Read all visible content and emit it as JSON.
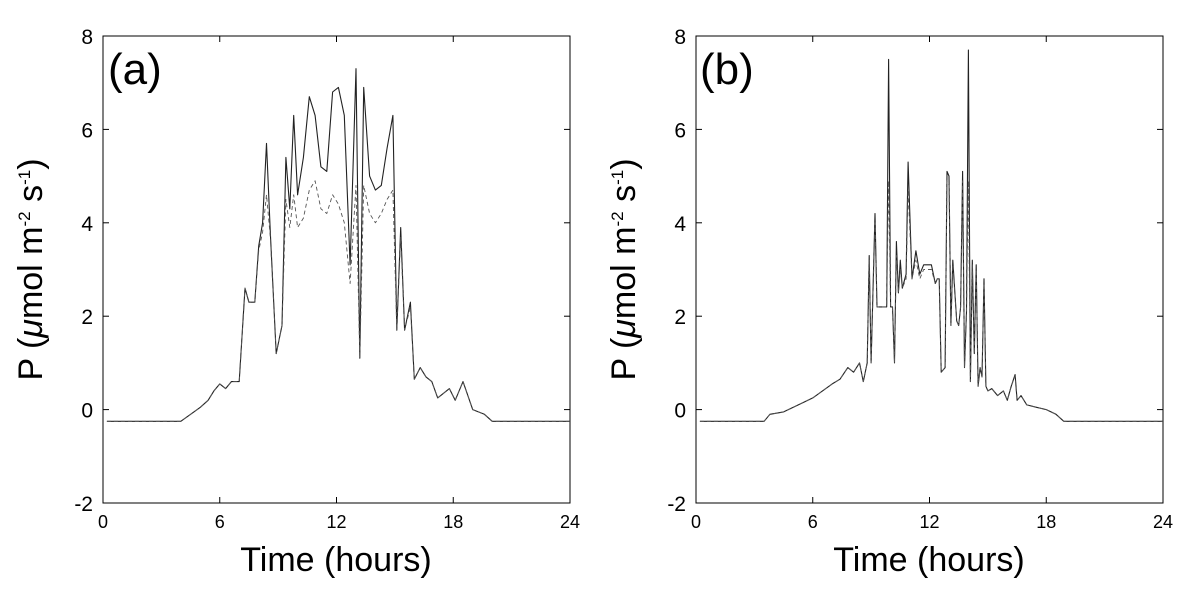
{
  "chart_data": [
    {
      "type": "line",
      "panel_label": "(a)",
      "xlabel": "Time (hours)",
      "ylabel": {
        "prefix": "P (",
        "mu": "μ",
        "mid1": "mol m",
        "sup1": "-2",
        "mid2": " s",
        "sup2": "-1",
        "suffix": ")"
      },
      "xlim": [
        0,
        24
      ],
      "ylim": [
        -2,
        8
      ],
      "xticks": [
        0,
        6,
        12,
        18,
        24
      ],
      "yticks": [
        -2,
        0,
        2,
        4,
        6,
        8
      ],
      "series": [
        {
          "name": "solid",
          "style": "solid",
          "color": "#222222",
          "x": [
            0.2,
            4.0,
            4.5,
            5.0,
            5.4,
            5.7,
            6.0,
            6.3,
            6.6,
            7.0,
            7.3,
            7.5,
            7.8,
            8.0,
            8.2,
            8.4,
            8.6,
            8.9,
            9.2,
            9.4,
            9.6,
            9.8,
            10.0,
            10.3,
            10.6,
            10.9,
            11.2,
            11.5,
            11.8,
            12.1,
            12.4,
            12.7,
            13.0,
            13.2,
            13.4,
            13.7,
            14.0,
            14.3,
            14.6,
            14.9,
            15.1,
            15.3,
            15.5,
            15.8,
            16.0,
            16.3,
            16.6,
            16.9,
            17.2,
            17.5,
            17.8,
            18.1,
            18.5,
            19.0,
            19.6,
            20.0,
            24.0
          ],
          "y": [
            -0.25,
            -0.25,
            -0.1,
            0.05,
            0.2,
            0.4,
            0.55,
            0.45,
            0.6,
            0.6,
            2.6,
            2.3,
            2.3,
            3.5,
            4.0,
            5.7,
            3.8,
            1.2,
            1.8,
            5.4,
            4.3,
            6.3,
            4.6,
            5.4,
            6.7,
            6.3,
            5.2,
            5.1,
            6.8,
            6.9,
            6.3,
            3.1,
            7.3,
            1.1,
            6.9,
            5.0,
            4.7,
            4.8,
            5.6,
            6.3,
            1.7,
            3.9,
            1.7,
            2.3,
            0.65,
            0.9,
            0.7,
            0.6,
            0.25,
            0.35,
            0.45,
            0.2,
            0.6,
            0.0,
            -0.1,
            -0.25,
            -0.25
          ]
        },
        {
          "name": "dashed",
          "style": "dashed",
          "color": "#555555",
          "x": [
            0.2,
            4.0,
            4.5,
            5.0,
            5.4,
            5.7,
            6.0,
            6.3,
            6.6,
            7.0,
            7.3,
            7.5,
            7.8,
            8.0,
            8.2,
            8.4,
            8.6,
            8.9,
            9.2,
            9.4,
            9.6,
            9.8,
            10.0,
            10.3,
            10.6,
            10.9,
            11.2,
            11.5,
            11.8,
            12.1,
            12.4,
            12.7,
            13.0,
            13.2,
            13.4,
            13.7,
            14.0,
            14.3,
            14.6,
            14.9,
            15.1,
            15.3,
            15.5,
            15.8,
            16.0,
            16.3,
            16.6,
            16.9,
            17.2,
            17.5,
            17.8,
            18.1,
            18.5,
            19.0,
            19.6,
            20.0,
            24.0
          ],
          "y": [
            -0.25,
            -0.25,
            -0.1,
            0.05,
            0.2,
            0.4,
            0.55,
            0.45,
            0.6,
            0.6,
            2.6,
            2.3,
            2.3,
            3.4,
            3.8,
            4.6,
            3.7,
            1.2,
            1.8,
            4.5,
            3.9,
            4.6,
            3.9,
            4.1,
            4.7,
            4.9,
            4.3,
            4.2,
            4.6,
            4.4,
            4.0,
            2.7,
            4.8,
            1.1,
            4.8,
            4.2,
            4.0,
            4.2,
            4.5,
            4.7,
            1.7,
            3.7,
            1.7,
            2.2,
            0.65,
            0.9,
            0.7,
            0.6,
            0.25,
            0.35,
            0.45,
            0.2,
            0.6,
            0.0,
            -0.1,
            -0.25,
            -0.25
          ]
        }
      ]
    },
    {
      "type": "line",
      "panel_label": "(b)",
      "xlabel": "Time (hours)",
      "ylabel": {
        "prefix": "P (",
        "mu": "μ",
        "mid1": "mol m",
        "sup1": "-2",
        "mid2": " s",
        "sup2": "-1",
        "suffix": ")"
      },
      "xlim": [
        0,
        24
      ],
      "ylim": [
        -2,
        8
      ],
      "xticks": [
        0,
        6,
        12,
        18,
        24
      ],
      "yticks": [
        -2,
        0,
        2,
        4,
        6,
        8
      ],
      "series": [
        {
          "name": "solid",
          "style": "solid",
          "color": "#222222",
          "x": [
            0.2,
            3.5,
            3.8,
            4.5,
            5.0,
            5.5,
            6.0,
            6.5,
            7.0,
            7.4,
            7.8,
            8.1,
            8.4,
            8.6,
            8.8,
            8.9,
            9.0,
            9.2,
            9.3,
            9.4,
            9.6,
            9.8,
            9.9,
            10.0,
            10.1,
            10.2,
            10.3,
            10.4,
            10.5,
            10.6,
            10.8,
            10.9,
            11.1,
            11.3,
            11.5,
            11.7,
            11.9,
            12.1,
            12.3,
            12.4,
            12.5,
            12.6,
            12.8,
            12.9,
            13.0,
            13.1,
            13.2,
            13.4,
            13.5,
            13.6,
            13.7,
            13.8,
            13.9,
            14.0,
            14.1,
            14.2,
            14.3,
            14.4,
            14.5,
            14.6,
            14.7,
            14.8,
            14.9,
            15.0,
            15.2,
            15.5,
            15.8,
            16.0,
            16.2,
            16.4,
            16.5,
            16.7,
            17.0,
            17.5,
            18.0,
            18.5,
            18.9,
            19.0,
            24.0
          ],
          "y": [
            -0.25,
            -0.25,
            -0.1,
            -0.05,
            0.05,
            0.15,
            0.25,
            0.4,
            0.55,
            0.65,
            0.9,
            0.8,
            1.0,
            0.6,
            1.0,
            3.3,
            1.0,
            4.2,
            2.2,
            2.2,
            2.2,
            2.2,
            7.5,
            2.2,
            2.2,
            1.0,
            3.6,
            2.5,
            3.2,
            2.6,
            2.9,
            5.3,
            2.8,
            3.4,
            2.9,
            3.1,
            3.1,
            3.1,
            2.7,
            2.8,
            2.8,
            0.8,
            0.9,
            5.1,
            5.0,
            1.8,
            3.2,
            1.9,
            1.8,
            2.2,
            5.1,
            0.9,
            2.1,
            7.7,
            0.6,
            3.2,
            1.2,
            3.1,
            0.5,
            0.9,
            0.7,
            2.8,
            0.5,
            0.4,
            0.45,
            0.3,
            0.4,
            0.2,
            0.5,
            0.75,
            0.2,
            0.3,
            0.1,
            0.05,
            0.0,
            -0.1,
            -0.25,
            -0.25,
            -0.25
          ]
        },
        {
          "name": "dashed",
          "style": "dashed",
          "color": "#555555",
          "x": [
            0.2,
            3.5,
            3.8,
            4.5,
            5.0,
            5.5,
            6.0,
            6.5,
            7.0,
            7.4,
            7.8,
            8.1,
            8.4,
            8.6,
            8.8,
            8.9,
            9.0,
            9.2,
            9.3,
            9.4,
            9.6,
            9.8,
            9.9,
            10.0,
            10.1,
            10.2,
            10.3,
            10.4,
            10.5,
            10.6,
            10.8,
            10.9,
            11.1,
            11.3,
            11.5,
            11.7,
            11.9,
            12.1,
            12.3,
            12.4,
            12.5,
            12.6,
            12.8,
            12.9,
            13.0,
            13.1,
            13.2,
            13.4,
            13.5,
            13.6,
            13.7,
            13.8,
            13.9,
            14.0,
            14.1,
            14.2,
            14.3,
            14.4,
            14.5,
            14.6,
            14.7,
            14.8,
            14.9,
            15.0,
            15.2,
            15.5,
            15.8,
            16.0,
            16.2,
            16.4,
            16.5,
            16.7,
            17.0,
            17.5,
            18.0,
            18.5,
            18.9,
            19.0,
            24.0
          ],
          "y": [
            -0.25,
            -0.25,
            -0.1,
            -0.05,
            0.05,
            0.15,
            0.25,
            0.4,
            0.55,
            0.65,
            0.9,
            0.8,
            1.0,
            0.6,
            1.0,
            3.2,
            1.0,
            4.0,
            2.2,
            2.2,
            2.2,
            2.2,
            4.9,
            2.2,
            2.2,
            1.0,
            3.3,
            2.5,
            3.0,
            2.6,
            2.8,
            4.7,
            2.8,
            3.2,
            2.8,
            3.0,
            3.0,
            3.0,
            2.7,
            2.8,
            2.8,
            0.8,
            0.9,
            4.9,
            4.8,
            1.8,
            3.1,
            1.9,
            1.8,
            2.2,
            4.9,
            0.9,
            2.1,
            4.9,
            0.6,
            3.1,
            1.2,
            3.0,
            0.5,
            0.9,
            0.7,
            2.7,
            0.5,
            0.4,
            0.45,
            0.3,
            0.4,
            0.2,
            0.5,
            0.72,
            0.2,
            0.3,
            0.1,
            0.05,
            0.0,
            -0.1,
            -0.25,
            -0.25,
            -0.25
          ]
        }
      ]
    }
  ]
}
